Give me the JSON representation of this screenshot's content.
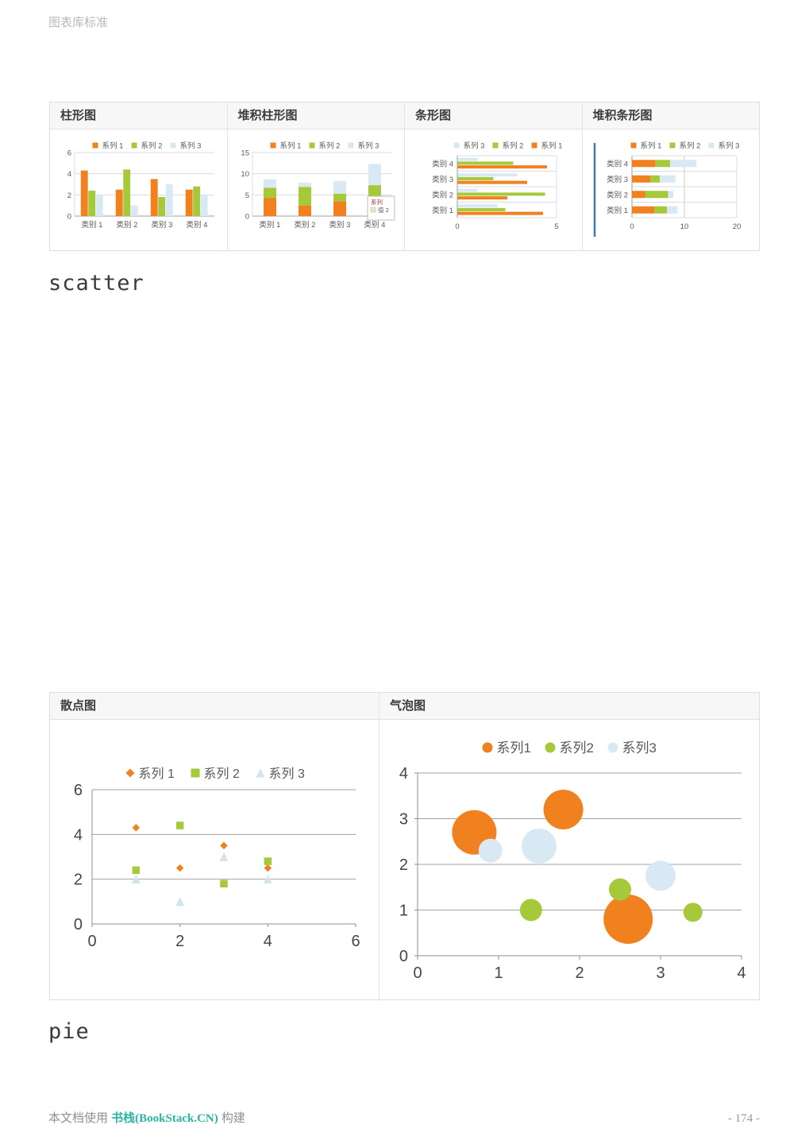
{
  "doc": {
    "title": "图表库标准"
  },
  "headings": {
    "scatter": "scatter",
    "pie": "pie"
  },
  "footer": {
    "prefix": "本文档使用 ",
    "brand": "书栈(BookStack.CN)",
    "suffix": " 构建",
    "page_number": "- 174 -"
  },
  "colors": {
    "series1": "#F0811E",
    "series2": "#A5C93A",
    "series3": "#D9E9F3",
    "series3_scatter": "#D2E4EE",
    "grid_light": "#DCDCDC",
    "grid_dark": "#A3A3A3",
    "axis": "#8F8F8F",
    "accent_line": "#3E7CA6",
    "brand": "#2BB5A2"
  },
  "chart_data": [
    {
      "panel_title": "柱形图",
      "type": "bar",
      "legend": [
        "系列 1",
        "系列 2",
        "系列 3"
      ],
      "categories": [
        "类别 1",
        "类别 2",
        "类别 3",
        "类别 4"
      ],
      "series": [
        {
          "name": "系列 1",
          "values": [
            4.3,
            2.5,
            3.5,
            2.5
          ]
        },
        {
          "name": "系列 2",
          "values": [
            2.4,
            4.4,
            1.8,
            2.8
          ]
        },
        {
          "name": "系列 3",
          "values": [
            2,
            1,
            3,
            2
          ]
        }
      ],
      "yticks": [
        0,
        2,
        4,
        6
      ],
      "ylim": [
        0,
        6
      ]
    },
    {
      "panel_title": "堆积柱形图",
      "type": "stacked-bar",
      "legend": [
        "系列 1",
        "系列 2",
        "系列 3"
      ],
      "categories": [
        "类别 1",
        "类别 2",
        "类别 3",
        "类别 4"
      ],
      "series": [
        {
          "name": "系列 1",
          "values": [
            4.3,
            2.5,
            3.5,
            4.5
          ]
        },
        {
          "name": "系列 2",
          "values": [
            2.4,
            4.4,
            1.8,
            2.8
          ]
        },
        {
          "name": "系列 3",
          "values": [
            2,
            1,
            3,
            5
          ]
        }
      ],
      "yticks": [
        0,
        5,
        10,
        15
      ],
      "ylim": [
        0,
        15
      ],
      "tooltip": {
        "line1": "系列",
        "line2": "值 2"
      }
    },
    {
      "panel_title": "条形图",
      "type": "hbar",
      "legend": [
        "系列 3",
        "系列 2",
        "系列 1"
      ],
      "categories": [
        "类别 1",
        "类别 2",
        "类别 3",
        "类别 4"
      ],
      "series": [
        {
          "name": "系列 1",
          "values": [
            4.3,
            2.5,
            3.5,
            4.5
          ]
        },
        {
          "name": "系列 2",
          "values": [
            2.4,
            4.4,
            1.8,
            2.8
          ]
        },
        {
          "name": "系列 3",
          "values": [
            2,
            1,
            3,
            1
          ]
        }
      ],
      "xticks": [
        0,
        5
      ],
      "xlim": [
        0,
        5
      ]
    },
    {
      "panel_title": "堆积条形图",
      "type": "stacked-hbar",
      "legend": [
        "系列 1",
        "系列 2",
        "系列 3"
      ],
      "categories": [
        "类别 1",
        "类别 2",
        "类别 3",
        "类别 4"
      ],
      "series": [
        {
          "name": "系列 1",
          "values": [
            4.3,
            2.5,
            3.5,
            4.5
          ]
        },
        {
          "name": "系列 2",
          "values": [
            2.4,
            4.4,
            1.8,
            2.8
          ]
        },
        {
          "name": "系列 3",
          "values": [
            2,
            1,
            3,
            5
          ]
        }
      ],
      "xticks": [
        0,
        10,
        20
      ],
      "xlim": [
        0,
        20
      ]
    },
    {
      "panel_title": "散点图",
      "type": "scatter",
      "legend": [
        "系列 1",
        "系列 2",
        "系列 3"
      ],
      "series": [
        {
          "name": "系列 1",
          "marker": "diamond",
          "points": [
            [
              1,
              4.3
            ],
            [
              2,
              2.5
            ],
            [
              3,
              3.5
            ],
            [
              4,
              2.5
            ]
          ]
        },
        {
          "name": "系列 2",
          "marker": "square",
          "points": [
            [
              1,
              2.4
            ],
            [
              2,
              4.4
            ],
            [
              3,
              1.8
            ],
            [
              4,
              2.8
            ]
          ]
        },
        {
          "name": "系列 3",
          "marker": "triangle",
          "points": [
            [
              1,
              2
            ],
            [
              2,
              1
            ],
            [
              3,
              3
            ],
            [
              4,
              2
            ]
          ]
        }
      ],
      "xticks": [
        0,
        2,
        4,
        6
      ],
      "yticks": [
        0,
        2,
        4,
        6
      ],
      "xlim": [
        0,
        6
      ],
      "ylim": [
        0,
        6
      ]
    },
    {
      "panel_title": "气泡图",
      "type": "bubble",
      "legend": [
        "系列1",
        "系列2",
        "系列3"
      ],
      "series": [
        {
          "name": "系列1",
          "bubbles": [
            [
              0.7,
              2.7,
              28
            ],
            [
              1.8,
              3.2,
              25
            ],
            [
              2.6,
              0.8,
              31
            ]
          ]
        },
        {
          "name": "系列2",
          "bubbles": [
            [
              1.4,
              1.0,
              14
            ],
            [
              2.5,
              1.45,
              14
            ],
            [
              3.4,
              0.95,
              12
            ]
          ]
        },
        {
          "name": "系列3",
          "bubbles": [
            [
              0.9,
              2.3,
              15
            ],
            [
              1.5,
              2.4,
              22
            ],
            [
              3.0,
              1.75,
              19
            ]
          ]
        }
      ],
      "xticks": [
        0,
        1,
        2,
        3,
        4
      ],
      "yticks": [
        0,
        1,
        2,
        3,
        4
      ],
      "xlim": [
        0,
        4
      ],
      "ylim": [
        0,
        4
      ]
    }
  ]
}
